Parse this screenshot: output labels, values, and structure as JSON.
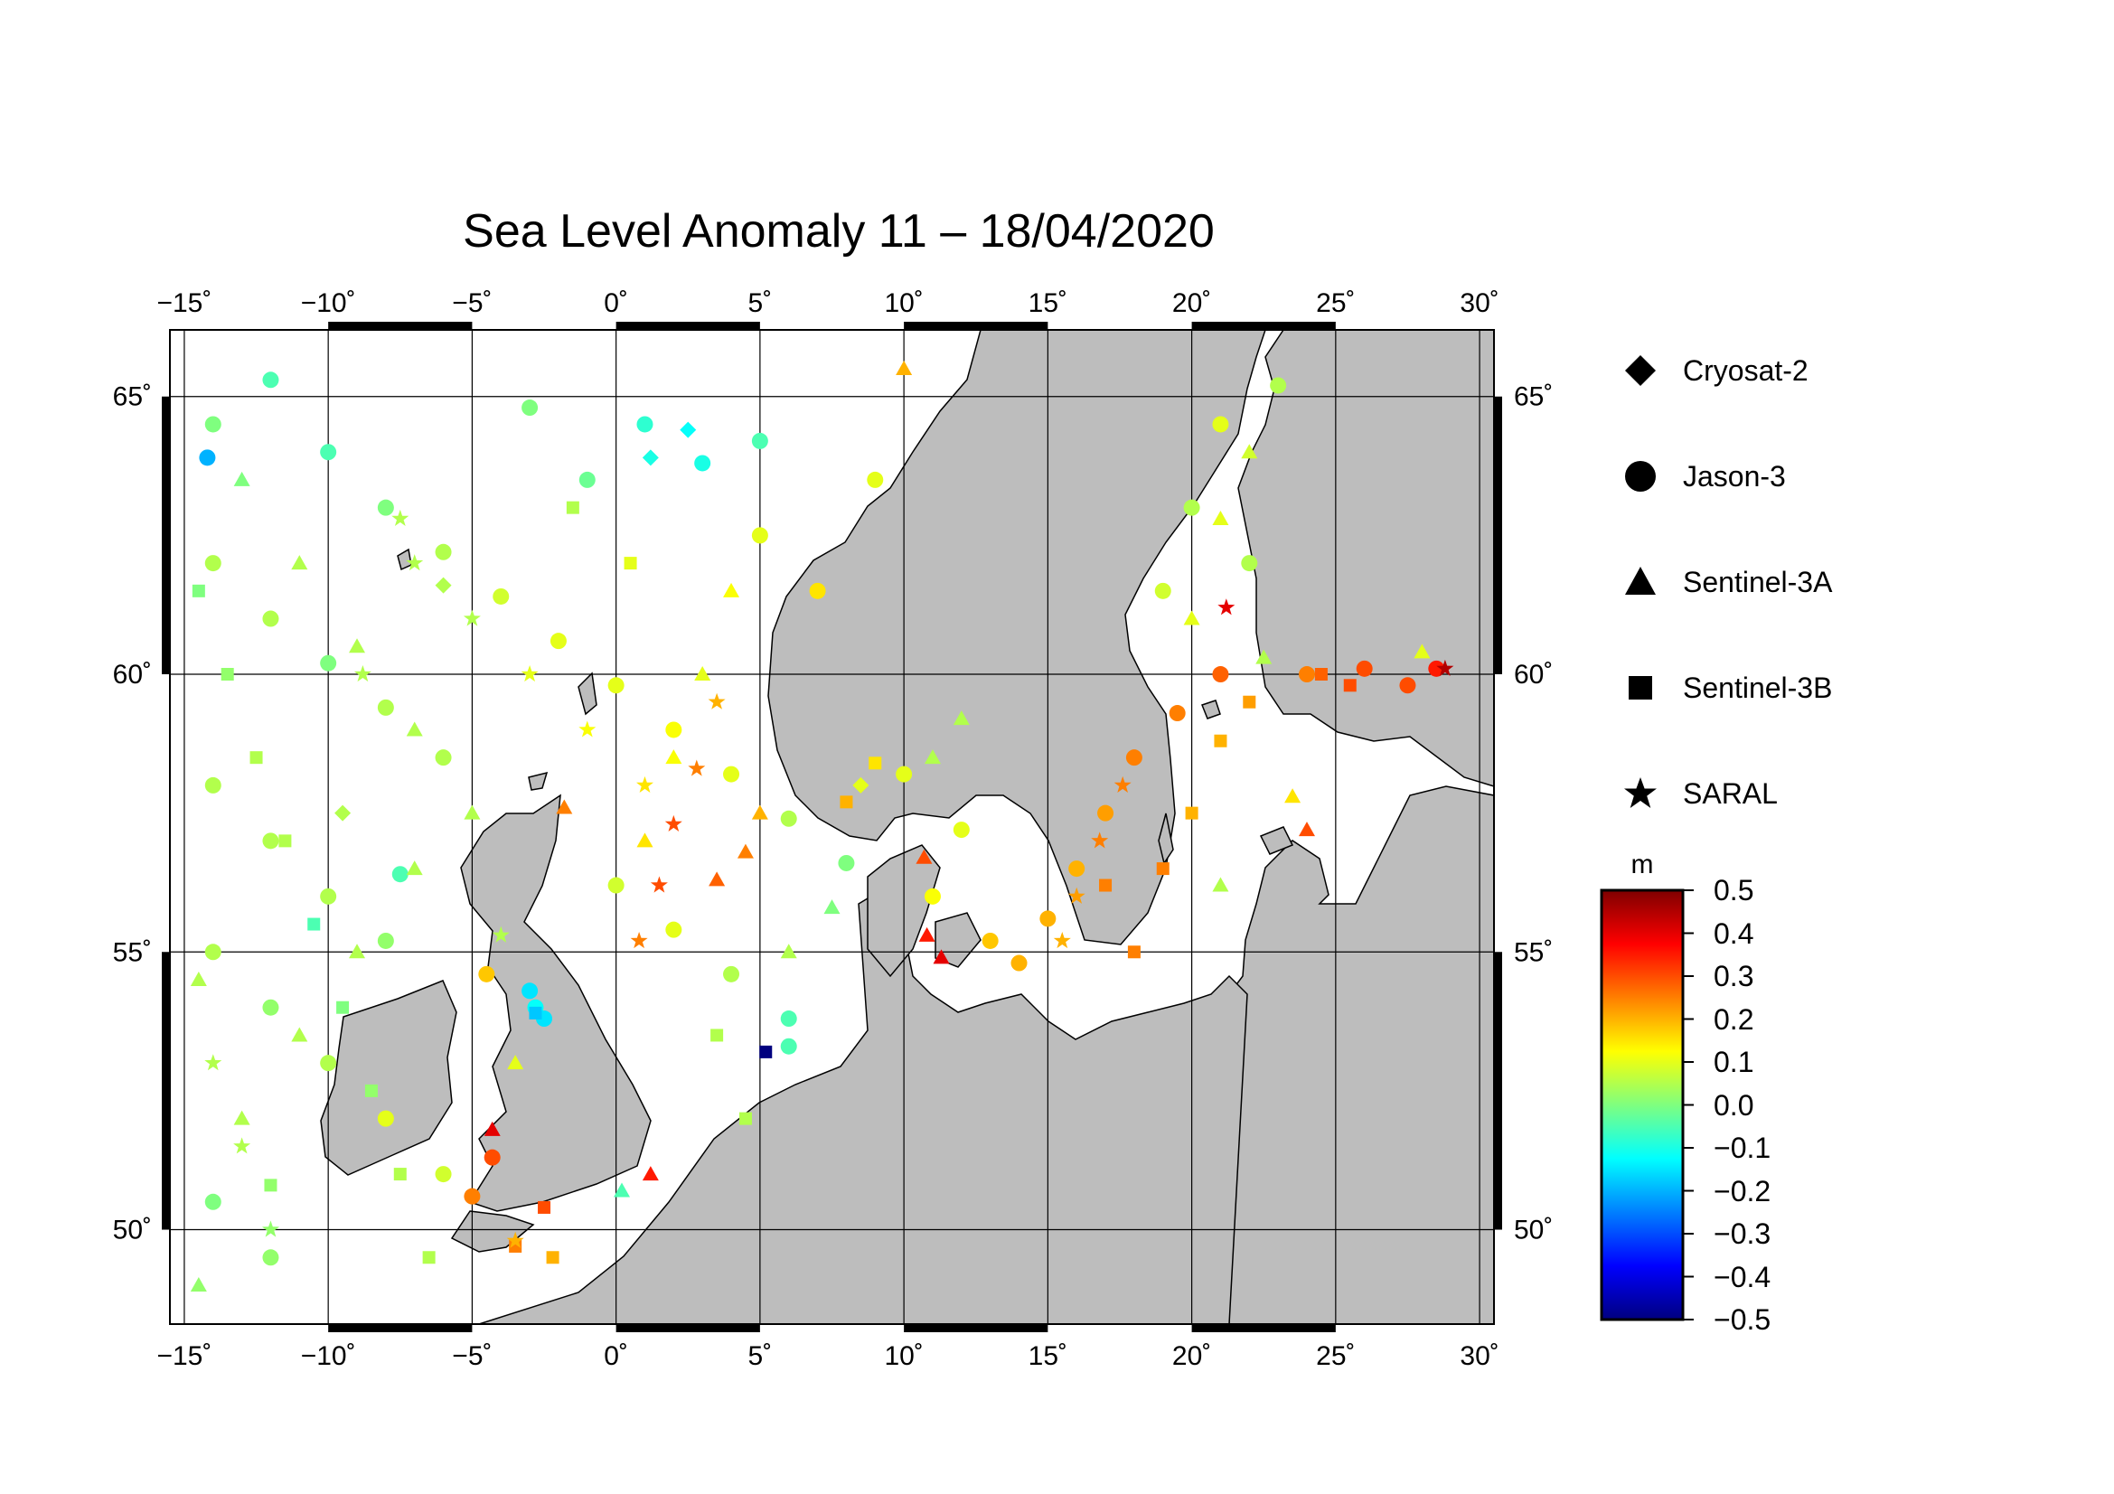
{
  "title": "Sea Level Anomaly 11 – 18/04/2020",
  "map": {
    "region": "North Sea, Baltic Sea and North-East Atlantic",
    "lon_range": [
      -15.5,
      30.5
    ],
    "lat_range": [
      48.3,
      66.2
    ],
    "lon_ticks": [
      -15,
      -10,
      -5,
      0,
      5,
      10,
      15,
      20,
      25,
      30
    ],
    "lat_ticks": [
      50,
      55,
      60,
      65
    ],
    "lon_tick_labels": [
      "−15˚",
      "−10˚",
      "−5˚",
      "0˚",
      "5˚",
      "10˚",
      "15˚",
      "20˚",
      "25˚",
      "30˚"
    ],
    "lat_tick_labels": [
      "50˚",
      "55˚",
      "60˚",
      "65˚"
    ],
    "land_color": "#bdbdbd",
    "sea_color": "#ffffff",
    "grid": true
  },
  "legend": {
    "items": [
      {
        "label": "Cryosat-2",
        "icon": "diamond-icon"
      },
      {
        "label": "Jason-3",
        "icon": "circle-icon"
      },
      {
        "label": "Sentinel-3A",
        "icon": "triangle-icon"
      },
      {
        "label": "Sentinel-3B",
        "icon": "square-icon"
      },
      {
        "label": "SARAL",
        "icon": "star-icon"
      }
    ]
  },
  "colorbar": {
    "unit": "m",
    "min": -0.5,
    "max": 0.5,
    "tick_labels": [
      "0.5",
      "0.4",
      "0.3",
      "0.2",
      "0.1",
      "0.0",
      "−0.1",
      "−0.2",
      "−0.3",
      "−0.4",
      "−0.5"
    ],
    "colormap": [
      "#00007f",
      "#0000ff",
      "#007fff",
      "#00ffff",
      "#7fff7f",
      "#ffff00",
      "#ff7f00",
      "#ff0000",
      "#7f0000"
    ]
  },
  "chart_data": {
    "type": "scatter",
    "title": "Sea Level Anomaly 11 – 18/04/2020",
    "xlabel": "",
    "ylabel": "",
    "xlim": [
      -15.5,
      30.5
    ],
    "ylim": [
      48.3,
      66.2
    ],
    "value_unit": "m",
    "value_range": [
      -0.5,
      0.5
    ],
    "series": [
      {
        "name": "Jason-3",
        "marker": "circle",
        "points": [
          [
            -14,
            64.5,
            0.0
          ],
          [
            -12,
            65.3,
            -0.05
          ],
          [
            -10,
            64.0,
            -0.05
          ],
          [
            -8,
            63.0,
            0.0
          ],
          [
            -6,
            62.2,
            0.05
          ],
          [
            -4,
            61.4,
            0.08
          ],
          [
            -2,
            60.6,
            0.1
          ],
          [
            0,
            59.8,
            0.1
          ],
          [
            2,
            59.0,
            0.12
          ],
          [
            4,
            58.2,
            0.1
          ],
          [
            6,
            57.4,
            0.05
          ],
          [
            8,
            56.6,
            0.0
          ],
          [
            -14,
            62.0,
            0.05
          ],
          [
            -12,
            61.0,
            0.05
          ],
          [
            -10,
            60.2,
            0.0
          ],
          [
            -8,
            59.4,
            0.05
          ],
          [
            -6,
            58.5,
            0.05
          ],
          [
            0,
            56.2,
            0.08
          ],
          [
            2,
            55.4,
            0.1
          ],
          [
            4,
            54.6,
            0.05
          ],
          [
            6,
            53.8,
            -0.05
          ],
          [
            -14,
            58.0,
            0.05
          ],
          [
            -12,
            57.0,
            0.05
          ],
          [
            -10,
            56.0,
            0.05
          ],
          [
            -8,
            55.2,
            0.02
          ],
          [
            -14,
            55.0,
            0.05
          ],
          [
            -12,
            54.0,
            0.02
          ],
          [
            -10,
            53.0,
            0.05
          ],
          [
            -8,
            52.0,
            0.1
          ],
          [
            -6,
            51.0,
            0.08
          ],
          [
            -14,
            50.5,
            0.0
          ],
          [
            -12,
            49.5,
            0.02
          ],
          [
            5,
            62.5,
            0.1
          ],
          [
            7,
            61.5,
            0.15
          ],
          [
            9,
            63.5,
            0.1
          ],
          [
            1,
            64.5,
            -0.08
          ],
          [
            3,
            63.8,
            -0.1
          ],
          [
            5,
            64.2,
            -0.05
          ],
          [
            -3,
            64.8,
            0.0
          ],
          [
            -1,
            63.5,
            -0.02
          ],
          [
            20,
            63.0,
            0.05
          ],
          [
            21,
            64.5,
            0.1
          ],
          [
            22,
            62.0,
            0.05
          ],
          [
            19,
            61.5,
            0.08
          ],
          [
            23,
            65.2,
            0.05
          ],
          [
            18,
            58.5,
            0.25
          ],
          [
            19.5,
            59.3,
            0.25
          ],
          [
            21,
            60.0,
            0.28
          ],
          [
            17,
            57.5,
            0.22
          ],
          [
            16,
            56.5,
            0.2
          ],
          [
            15,
            55.6,
            0.2
          ],
          [
            14,
            54.8,
            0.2
          ],
          [
            13,
            55.2,
            0.18
          ],
          [
            24,
            60.0,
            0.25
          ],
          [
            26,
            60.1,
            0.3
          ],
          [
            27.5,
            59.8,
            0.3
          ],
          [
            28.5,
            60.1,
            0.35
          ],
          [
            11,
            56.0,
            0.12
          ],
          [
            12,
            57.2,
            0.1
          ],
          [
            10,
            58.2,
            0.1
          ],
          [
            -4.3,
            51.3,
            0.3
          ],
          [
            -5.0,
            50.6,
            0.25
          ],
          [
            -4.5,
            54.6,
            0.18
          ],
          [
            -2.8,
            54.0,
            -0.12
          ],
          [
            -3.0,
            54.3,
            -0.15
          ],
          [
            6,
            53.3,
            -0.05
          ],
          [
            -7.5,
            56.4,
            -0.05
          ],
          [
            -14.2,
            63.9,
            -0.2
          ],
          [
            -2.5,
            53.8,
            -0.15
          ]
        ]
      },
      {
        "name": "Sentinel-3A",
        "marker": "triangle",
        "points": [
          [
            -13,
            63.5,
            0.0
          ],
          [
            -11,
            62.0,
            0.05
          ],
          [
            -9,
            60.5,
            0.05
          ],
          [
            -7,
            59.0,
            0.05
          ],
          [
            -5,
            57.5,
            0.05
          ],
          [
            -13,
            52.0,
            0.05
          ],
          [
            -11,
            53.5,
            0.05
          ],
          [
            -9,
            55.0,
            0.05
          ],
          [
            -7,
            56.5,
            0.05
          ],
          [
            1,
            57.0,
            0.15
          ],
          [
            2,
            58.5,
            0.12
          ],
          [
            3,
            60.0,
            0.1
          ],
          [
            4,
            61.5,
            0.12
          ],
          [
            5,
            57.5,
            0.2
          ],
          [
            4.5,
            56.8,
            0.25
          ],
          [
            3.5,
            56.3,
            0.28
          ],
          [
            6,
            55.0,
            0.05
          ],
          [
            7.5,
            55.8,
            0.0
          ],
          [
            11,
            58.5,
            0.05
          ],
          [
            12,
            59.2,
            0.05
          ],
          [
            20,
            61.0,
            0.1
          ],
          [
            21,
            62.8,
            0.1
          ],
          [
            22,
            64.0,
            0.08
          ],
          [
            22.5,
            60.3,
            0.05
          ],
          [
            23.5,
            57.8,
            0.15
          ],
          [
            24,
            57.2,
            0.3
          ],
          [
            28,
            60.4,
            0.1
          ],
          [
            -4.3,
            51.8,
            0.4
          ],
          [
            -1.8,
            57.6,
            0.25
          ],
          [
            10.8,
            55.3,
            0.35
          ],
          [
            11.3,
            54.9,
            0.4
          ],
          [
            10.7,
            56.7,
            0.3
          ],
          [
            1.2,
            51.0,
            0.35
          ],
          [
            0.2,
            50.7,
            -0.05
          ],
          [
            21.0,
            56.2,
            0.05
          ],
          [
            -14.5,
            54.5,
            0.05
          ],
          [
            -14.5,
            49.0,
            0.02
          ],
          [
            10,
            65.5,
            0.2
          ],
          [
            -3.5,
            53.0,
            0.1
          ]
        ]
      },
      {
        "name": "Sentinel-3B",
        "marker": "square",
        "points": [
          [
            -14.5,
            61.5,
            0.0
          ],
          [
            -13.5,
            60.0,
            0.02
          ],
          [
            -12.5,
            58.5,
            0.05
          ],
          [
            -11.5,
            57.0,
            0.05
          ],
          [
            -10.5,
            55.5,
            -0.05
          ],
          [
            -9.5,
            54.0,
            0.0
          ],
          [
            -8.5,
            52.5,
            0.02
          ],
          [
            -7.5,
            51.0,
            0.05
          ],
          [
            -6.5,
            49.5,
            0.05
          ],
          [
            -2.8,
            53.9,
            -0.18
          ],
          [
            3.5,
            53.5,
            0.05
          ],
          [
            4.5,
            52.0,
            0.05
          ],
          [
            8,
            57.7,
            0.2
          ],
          [
            9,
            58.4,
            0.15
          ],
          [
            17,
            56.2,
            0.25
          ],
          [
            18,
            55.0,
            0.25
          ],
          [
            19,
            56.5,
            0.25
          ],
          [
            20,
            57.5,
            0.2
          ],
          [
            21,
            58.8,
            0.2
          ],
          [
            22,
            59.5,
            0.22
          ],
          [
            24.5,
            60.0,
            0.28
          ],
          [
            25.5,
            59.8,
            0.3
          ],
          [
            5.2,
            53.2,
            -0.55
          ],
          [
            -2.5,
            50.4,
            0.3
          ],
          [
            -3.5,
            49.7,
            0.25
          ],
          [
            -2.2,
            49.5,
            0.2
          ],
          [
            -12,
            50.8,
            0.02
          ],
          [
            -1.5,
            63.0,
            0.05
          ],
          [
            0.5,
            62.0,
            0.1
          ]
        ]
      },
      {
        "name": "SARAL",
        "marker": "star",
        "points": [
          [
            -7,
            62.0,
            0.05
          ],
          [
            -5,
            61.0,
            0.05
          ],
          [
            -3,
            60.0,
            0.1
          ],
          [
            -1,
            59.0,
            0.12
          ],
          [
            1,
            58.0,
            0.15
          ],
          [
            1.5,
            56.2,
            0.3
          ],
          [
            0.8,
            55.2,
            0.25
          ],
          [
            2,
            57.3,
            0.3
          ],
          [
            2.8,
            58.3,
            0.25
          ],
          [
            3.5,
            59.5,
            0.2
          ],
          [
            16,
            56.0,
            0.22
          ],
          [
            16.8,
            57.0,
            0.25
          ],
          [
            17.6,
            58.0,
            0.25
          ],
          [
            15.5,
            55.2,
            0.2
          ],
          [
            21.2,
            61.2,
            0.4
          ],
          [
            28.8,
            60.1,
            0.45
          ],
          [
            -14,
            53.0,
            0.05
          ],
          [
            -13,
            51.5,
            0.05
          ],
          [
            -12,
            50.0,
            0.02
          ],
          [
            -3.5,
            49.8,
            0.2
          ],
          [
            -7.5,
            62.8,
            0.05
          ],
          [
            -4,
            55.3,
            0.05
          ],
          [
            -8.8,
            60.0,
            0.05
          ]
        ]
      },
      {
        "name": "Cryosat-2",
        "marker": "diamond",
        "points": [
          [
            1.2,
            63.9,
            -0.1
          ],
          [
            2.5,
            64.4,
            -0.12
          ],
          [
            -6,
            61.6,
            0.05
          ],
          [
            -9.5,
            57.5,
            0.05
          ],
          [
            8.5,
            58.0,
            0.1
          ]
        ]
      }
    ]
  }
}
